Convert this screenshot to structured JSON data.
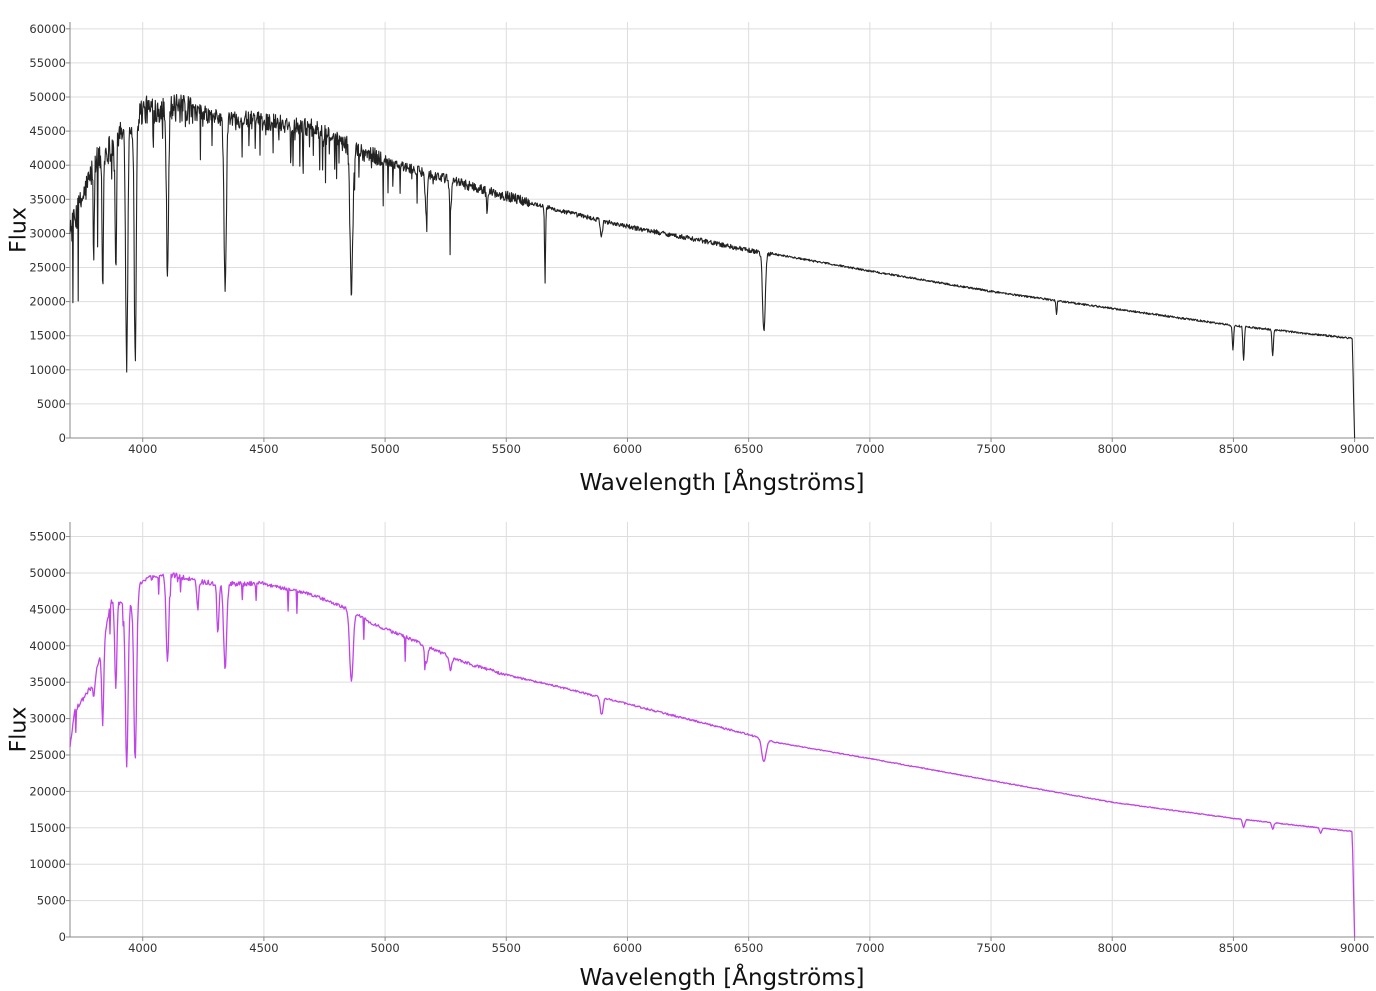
{
  "chart_data": [
    {
      "type": "line",
      "title": "",
      "xlabel": "Wavelength [Ångströms]",
      "ylabel": "Flux",
      "xlim": [
        3700,
        9080
      ],
      "ylim": [
        0,
        61000
      ],
      "xticks": [
        4000,
        4500,
        5000,
        5500,
        6000,
        6500,
        7000,
        7500,
        8000,
        8500,
        9000
      ],
      "yticks": [
        0,
        5000,
        10000,
        15000,
        20000,
        25000,
        30000,
        35000,
        40000,
        45000,
        50000,
        55000,
        60000
      ],
      "grid": true,
      "series": [
        {
          "color": "#222222",
          "noise": "high",
          "continuum": [
            [
              3700,
              30000
            ],
            [
              3800,
              40000
            ],
            [
              3900,
              44000
            ],
            [
              4000,
              48000
            ],
            [
              4100,
              48500
            ],
            [
              4200,
              48000
            ],
            [
              4300,
              47000
            ],
            [
              4500,
              46500
            ],
            [
              4700,
              45500
            ],
            [
              4900,
              42000
            ],
            [
              5100,
              39500
            ],
            [
              5300,
              37500
            ],
            [
              5500,
              35500
            ],
            [
              5700,
              33500
            ],
            [
              6000,
              31000
            ],
            [
              6300,
              29000
            ],
            [
              6500,
              27500
            ],
            [
              6600,
              27000
            ],
            [
              7000,
              24500
            ],
            [
              7500,
              21500
            ],
            [
              8000,
              19000
            ],
            [
              8500,
              16500
            ],
            [
              8990,
              14600
            ],
            [
              9000,
              0
            ]
          ],
          "absorption_lines": [
            {
              "x": 3934,
              "y": 11000,
              "w": 6
            },
            {
              "x": 3969,
              "y": 12000,
              "w": 6
            },
            {
              "x": 3835,
              "y": 22000,
              "w": 4
            },
            {
              "x": 3889,
              "y": 23500,
              "w": 4
            },
            {
              "x": 3798,
              "y": 24500,
              "w": 3
            },
            {
              "x": 4102,
              "y": 24500,
              "w": 6
            },
            {
              "x": 4340,
              "y": 22000,
              "w": 7
            },
            {
              "x": 4861,
              "y": 21000,
              "w": 8
            },
            {
              "x": 5170,
              "y": 33000,
              "w": 6
            },
            {
              "x": 5270,
              "y": 33500,
              "w": 6
            },
            {
              "x": 5420,
              "y": 33500,
              "w": 4
            },
            {
              "x": 5660,
              "y": 23000,
              "w": 3
            },
            {
              "x": 5893,
              "y": 29500,
              "w": 6
            },
            {
              "x": 6563,
              "y": 15500,
              "w": 8
            },
            {
              "x": 7770,
              "y": 18000,
              "w": 3
            },
            {
              "x": 8498,
              "y": 13000,
              "w": 4
            },
            {
              "x": 8542,
              "y": 11500,
              "w": 4
            },
            {
              "x": 8662,
              "y": 12000,
              "w": 4
            }
          ]
        }
      ]
    },
    {
      "type": "line",
      "title": "",
      "xlabel": "Wavelength [Ångströms]",
      "ylabel": "Flux",
      "xlim": [
        3700,
        9080
      ],
      "ylim": [
        0,
        57000
      ],
      "xticks": [
        4000,
        4500,
        5000,
        5500,
        6000,
        6500,
        7000,
        7500,
        8000,
        8500,
        9000
      ],
      "yticks": [
        0,
        5000,
        10000,
        15000,
        20000,
        25000,
        30000,
        35000,
        40000,
        45000,
        50000,
        55000
      ],
      "grid": true,
      "series": [
        {
          "color": "#c044e6",
          "noise": "low",
          "continuum": [
            [
              3700,
              26000
            ],
            [
              3720,
              31000
            ],
            [
              3800,
              35000
            ],
            [
              3870,
              46000
            ],
            [
              3950,
              46000
            ],
            [
              4000,
              49000
            ],
            [
              4100,
              50000
            ],
            [
              4200,
              49000
            ],
            [
              4300,
              48500
            ],
            [
              4500,
              48500
            ],
            [
              4700,
              47000
            ],
            [
              4850,
              45000
            ],
            [
              4950,
              43000
            ],
            [
              5100,
              41000
            ],
            [
              5300,
              38000
            ],
            [
              5500,
              36000
            ],
            [
              5700,
              34500
            ],
            [
              6000,
              32000
            ],
            [
              6300,
              29500
            ],
            [
              6500,
              27800
            ],
            [
              6600,
              26800
            ],
            [
              7000,
              24500
            ],
            [
              7500,
              21500
            ],
            [
              8000,
              18500
            ],
            [
              8500,
              16300
            ],
            [
              8990,
              14500
            ],
            [
              9000,
              0
            ]
          ],
          "absorption_lines": [
            {
              "x": 3934,
              "y": 23500,
              "w": 8
            },
            {
              "x": 3969,
              "y": 24000,
              "w": 8
            },
            {
              "x": 3889,
              "y": 34000,
              "w": 6
            },
            {
              "x": 3835,
              "y": 29000,
              "w": 6
            },
            {
              "x": 3798,
              "y": 33000,
              "w": 5
            },
            {
              "x": 4102,
              "y": 38000,
              "w": 8
            },
            {
              "x": 4227,
              "y": 45000,
              "w": 6
            },
            {
              "x": 4310,
              "y": 42000,
              "w": 6
            },
            {
              "x": 4340,
              "y": 37000,
              "w": 9
            },
            {
              "x": 4861,
              "y": 35000,
              "w": 10
            },
            {
              "x": 5170,
              "y": 37500,
              "w": 8
            },
            {
              "x": 5270,
              "y": 36500,
              "w": 7
            },
            {
              "x": 5893,
              "y": 30500,
              "w": 8
            },
            {
              "x": 6563,
              "y": 24000,
              "w": 12
            },
            {
              "x": 8542,
              "y": 15000,
              "w": 6
            },
            {
              "x": 8662,
              "y": 14800,
              "w": 6
            },
            {
              "x": 8860,
              "y": 14300,
              "w": 6
            }
          ]
        }
      ]
    }
  ]
}
